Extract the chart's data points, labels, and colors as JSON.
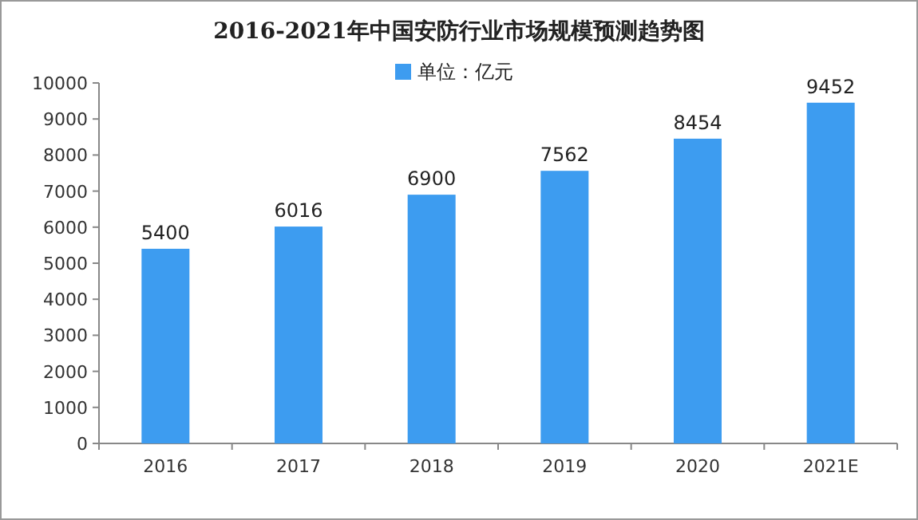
{
  "chart_data": {
    "type": "bar",
    "title": "2016-2021年中国安防行业市场规模预测趋势图",
    "categories": [
      "2016",
      "2017",
      "2018",
      "2019",
      "2020",
      "2021E"
    ],
    "series": [
      {
        "name": "单位：亿元",
        "color": "#3d9cf0",
        "values": [
          5400,
          6016,
          6900,
          7562,
          8454,
          9452
        ]
      }
    ],
    "ylim": [
      0,
      10000
    ],
    "yticks": [
      0,
      1000,
      2000,
      3000,
      4000,
      5000,
      6000,
      7000,
      8000,
      9000,
      10000
    ],
    "data_labels": true,
    "legend": "top"
  }
}
